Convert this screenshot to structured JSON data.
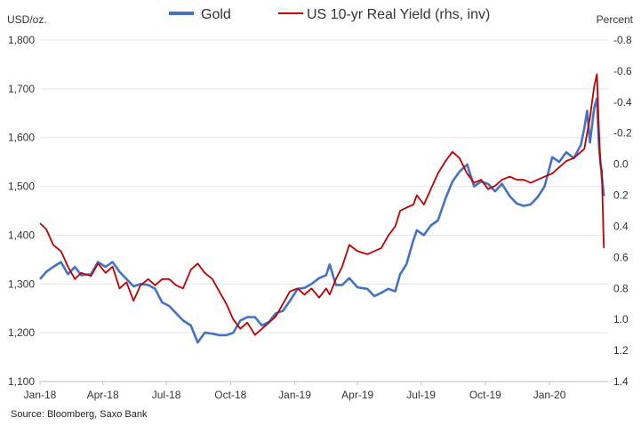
{
  "chart_data": {
    "type": "line",
    "title": "",
    "legend": {
      "placement": "top-center"
    },
    "y_left": {
      "label": "USD/oz.",
      "range": [
        1100,
        1800
      ],
      "ticks": [
        1100,
        1200,
        1300,
        1400,
        1500,
        1600,
        1700,
        1800
      ],
      "tick_labels": [
        "1,100",
        "1,200",
        "1,300",
        "1,400",
        "1,500",
        "1,600",
        "1,700",
        "1,800"
      ]
    },
    "y_right": {
      "label": "Percent",
      "inverted": true,
      "range": [
        -0.8,
        1.4
      ],
      "ticks": [
        -0.8,
        -0.6,
        -0.4,
        -0.2,
        0.0,
        0.2,
        0.4,
        0.6,
        0.8,
        1.0,
        1.2,
        1.4
      ],
      "tick_labels": [
        "-0.8",
        "-0.6",
        "-0.4",
        "-0.2",
        "0.0",
        "0.2",
        "0.4",
        "0.6",
        "0.8",
        "1.0",
        "1.2",
        "1.4"
      ]
    },
    "x_axis": {
      "range": [
        "2018-01-01",
        "2020-03-25"
      ],
      "ticks": [
        "2018-01-01",
        "2018-04-01",
        "2018-07-01",
        "2018-10-01",
        "2019-01-01",
        "2019-04-01",
        "2019-07-01",
        "2019-10-01",
        "2020-01-01"
      ],
      "tick_labels": [
        "Jan-18",
        "Apr-18",
        "Jul-18",
        "Oct-18",
        "Jan-19",
        "Apr-19",
        "Jul-19",
        "Oct-19",
        "Jan-20"
      ]
    },
    "grid": {
      "horizontal": true,
      "vertical": false
    },
    "series": [
      {
        "name": "Gold",
        "axis": "left",
        "color": "#4472c4",
        "points": [
          [
            "2018-01-01",
            1310
          ],
          [
            "2018-01-10",
            1325
          ],
          [
            "2018-01-20",
            1335
          ],
          [
            "2018-01-31",
            1345
          ],
          [
            "2018-02-10",
            1320
          ],
          [
            "2018-02-20",
            1335
          ],
          [
            "2018-03-01",
            1318
          ],
          [
            "2018-03-15",
            1320
          ],
          [
            "2018-03-25",
            1345
          ],
          [
            "2018-04-05",
            1335
          ],
          [
            "2018-04-15",
            1345
          ],
          [
            "2018-04-25",
            1325
          ],
          [
            "2018-05-05",
            1310
          ],
          [
            "2018-05-15",
            1295
          ],
          [
            "2018-05-25",
            1300
          ],
          [
            "2018-06-05",
            1298
          ],
          [
            "2018-06-15",
            1290
          ],
          [
            "2018-06-25",
            1262
          ],
          [
            "2018-07-05",
            1255
          ],
          [
            "2018-07-15",
            1240
          ],
          [
            "2018-07-25",
            1225
          ],
          [
            "2018-08-05",
            1215
          ],
          [
            "2018-08-15",
            1180
          ],
          [
            "2018-08-25",
            1200
          ],
          [
            "2018-09-05",
            1198
          ],
          [
            "2018-09-15",
            1195
          ],
          [
            "2018-09-25",
            1195
          ],
          [
            "2018-10-05",
            1200
          ],
          [
            "2018-10-15",
            1225
          ],
          [
            "2018-10-25",
            1232
          ],
          [
            "2018-11-05",
            1232
          ],
          [
            "2018-11-15",
            1215
          ],
          [
            "2018-11-25",
            1222
          ],
          [
            "2018-12-05",
            1240
          ],
          [
            "2018-12-15",
            1245
          ],
          [
            "2018-12-25",
            1265
          ],
          [
            "2019-01-05",
            1290
          ],
          [
            "2019-01-15",
            1292
          ],
          [
            "2019-01-25",
            1300
          ],
          [
            "2019-02-05",
            1312
          ],
          [
            "2019-02-15",
            1318
          ],
          [
            "2019-02-20",
            1340
          ],
          [
            "2019-03-01",
            1298
          ],
          [
            "2019-03-10",
            1298
          ],
          [
            "2019-03-20",
            1312
          ],
          [
            "2019-04-01",
            1293
          ],
          [
            "2019-04-15",
            1290
          ],
          [
            "2019-04-25",
            1275
          ],
          [
            "2019-05-05",
            1282
          ],
          [
            "2019-05-15",
            1290
          ],
          [
            "2019-05-25",
            1285
          ],
          [
            "2019-06-01",
            1320
          ],
          [
            "2019-06-10",
            1340
          ],
          [
            "2019-06-20",
            1390
          ],
          [
            "2019-06-25",
            1410
          ],
          [
            "2019-07-05",
            1400
          ],
          [
            "2019-07-15",
            1420
          ],
          [
            "2019-07-25",
            1430
          ],
          [
            "2019-08-05",
            1475
          ],
          [
            "2019-08-15",
            1510
          ],
          [
            "2019-08-25",
            1530
          ],
          [
            "2019-09-05",
            1545
          ],
          [
            "2019-09-15",
            1500
          ],
          [
            "2019-09-25",
            1510
          ],
          [
            "2019-10-05",
            1505
          ],
          [
            "2019-10-15",
            1490
          ],
          [
            "2019-10-25",
            1505
          ],
          [
            "2019-11-05",
            1480
          ],
          [
            "2019-11-15",
            1465
          ],
          [
            "2019-11-25",
            1460
          ],
          [
            "2019-12-05",
            1463
          ],
          [
            "2019-12-15",
            1478
          ],
          [
            "2019-12-25",
            1500
          ],
          [
            "2020-01-05",
            1560
          ],
          [
            "2020-01-15",
            1550
          ],
          [
            "2020-01-25",
            1570
          ],
          [
            "2020-02-05",
            1558
          ],
          [
            "2020-02-15",
            1585
          ],
          [
            "2020-02-20",
            1620
          ],
          [
            "2020-02-24",
            1655
          ],
          [
            "2020-02-28",
            1590
          ],
          [
            "2020-03-05",
            1660
          ],
          [
            "2020-03-09",
            1680
          ],
          [
            "2020-03-12",
            1580
          ],
          [
            "2020-03-16",
            1520
          ],
          [
            "2020-03-19",
            1480
          ]
        ]
      },
      {
        "name": "US 10-yr Real Yield (rhs, inv)",
        "axis": "right",
        "color": "#c00000",
        "points": [
          [
            "2018-01-01",
            0.38
          ],
          [
            "2018-01-10",
            0.42
          ],
          [
            "2018-01-20",
            0.52
          ],
          [
            "2018-01-31",
            0.56
          ],
          [
            "2018-02-10",
            0.66
          ],
          [
            "2018-02-20",
            0.74
          ],
          [
            "2018-03-01",
            0.7
          ],
          [
            "2018-03-15",
            0.72
          ],
          [
            "2018-03-25",
            0.64
          ],
          [
            "2018-04-05",
            0.7
          ],
          [
            "2018-04-15",
            0.66
          ],
          [
            "2018-04-25",
            0.8
          ],
          [
            "2018-05-05",
            0.76
          ],
          [
            "2018-05-15",
            0.88
          ],
          [
            "2018-05-25",
            0.78
          ],
          [
            "2018-06-05",
            0.74
          ],
          [
            "2018-06-15",
            0.78
          ],
          [
            "2018-06-25",
            0.74
          ],
          [
            "2018-07-05",
            0.74
          ],
          [
            "2018-07-15",
            0.78
          ],
          [
            "2018-07-25",
            0.8
          ],
          [
            "2018-08-05",
            0.68
          ],
          [
            "2018-08-15",
            0.64
          ],
          [
            "2018-08-25",
            0.7
          ],
          [
            "2018-09-05",
            0.74
          ],
          [
            "2018-09-15",
            0.82
          ],
          [
            "2018-09-25",
            0.9
          ],
          [
            "2018-10-05",
            1.0
          ],
          [
            "2018-10-15",
            1.06
          ],
          [
            "2018-10-25",
            1.02
          ],
          [
            "2018-11-05",
            1.1
          ],
          [
            "2018-11-15",
            1.06
          ],
          [
            "2018-11-25",
            1.02
          ],
          [
            "2018-12-05",
            0.98
          ],
          [
            "2018-12-15",
            0.9
          ],
          [
            "2018-12-25",
            0.82
          ],
          [
            "2019-01-05",
            0.8
          ],
          [
            "2019-01-15",
            0.84
          ],
          [
            "2019-01-25",
            0.8
          ],
          [
            "2019-02-05",
            0.86
          ],
          [
            "2019-02-15",
            0.8
          ],
          [
            "2019-02-20",
            0.84
          ],
          [
            "2019-03-01",
            0.74
          ],
          [
            "2019-03-10",
            0.66
          ],
          [
            "2019-03-20",
            0.52
          ],
          [
            "2019-04-01",
            0.56
          ],
          [
            "2019-04-15",
            0.58
          ],
          [
            "2019-04-25",
            0.56
          ],
          [
            "2019-05-05",
            0.54
          ],
          [
            "2019-05-15",
            0.46
          ],
          [
            "2019-05-25",
            0.4
          ],
          [
            "2019-06-01",
            0.3
          ],
          [
            "2019-06-10",
            0.28
          ],
          [
            "2019-06-20",
            0.26
          ],
          [
            "2019-06-25",
            0.2
          ],
          [
            "2019-07-05",
            0.26
          ],
          [
            "2019-07-15",
            0.16
          ],
          [
            "2019-07-25",
            0.06
          ],
          [
            "2019-08-05",
            -0.02
          ],
          [
            "2019-08-15",
            -0.08
          ],
          [
            "2019-08-25",
            -0.04
          ],
          [
            "2019-09-05",
            0.06
          ],
          [
            "2019-09-15",
            0.12
          ],
          [
            "2019-09-25",
            0.1
          ],
          [
            "2019-10-05",
            0.16
          ],
          [
            "2019-10-15",
            0.14
          ],
          [
            "2019-10-25",
            0.1
          ],
          [
            "2019-11-05",
            0.08
          ],
          [
            "2019-11-15",
            0.1
          ],
          [
            "2019-11-25",
            0.1
          ],
          [
            "2019-12-05",
            0.12
          ],
          [
            "2019-12-15",
            0.1
          ],
          [
            "2019-12-25",
            0.08
          ],
          [
            "2020-01-05",
            0.06
          ],
          [
            "2020-01-15",
            0.02
          ],
          [
            "2020-01-25",
            -0.02
          ],
          [
            "2020-02-05",
            -0.04
          ],
          [
            "2020-02-15",
            -0.08
          ],
          [
            "2020-02-20",
            -0.1
          ],
          [
            "2020-02-24",
            -0.2
          ],
          [
            "2020-02-28",
            -0.3
          ],
          [
            "2020-03-05",
            -0.5
          ],
          [
            "2020-03-09",
            -0.58
          ],
          [
            "2020-03-12",
            -0.2
          ],
          [
            "2020-03-14",
            0.0
          ],
          [
            "2020-03-16",
            0.04
          ],
          [
            "2020-03-18",
            0.4
          ],
          [
            "2020-03-19",
            0.54
          ]
        ]
      }
    ],
    "source": "Source: Bloomberg, Saxo Bank"
  }
}
